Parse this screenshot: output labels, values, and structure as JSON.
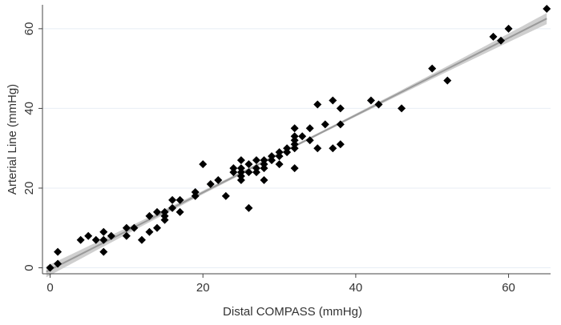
{
  "chart_data": {
    "type": "scatter",
    "title": "",
    "xlabel": "Distal COMPASS (mmHg)",
    "ylabel": "Arterial Line (mmHg)",
    "xlim": [
      -1,
      65.5
    ],
    "ylim": [
      -1.5,
      66
    ],
    "xticks": [
      0,
      20,
      40,
      60
    ],
    "yticks": [
      0,
      20,
      40,
      60
    ],
    "grid": "horizontal",
    "marker": "diamond",
    "colors": {
      "points": "#000000",
      "fit_line": "#9a9a9a",
      "ci_band": "#cfcfcf",
      "grid": "#e8eef4",
      "axis": "#444444"
    },
    "fit": {
      "intercept": -0.5,
      "slope": 0.97,
      "ci_halfwidth_min": 0.3,
      "ci_halfwidth_max": 1.4
    },
    "points": [
      [
        0,
        0
      ],
      [
        1,
        1
      ],
      [
        1,
        4
      ],
      [
        4,
        7
      ],
      [
        5,
        8
      ],
      [
        6,
        7
      ],
      [
        7,
        4
      ],
      [
        7,
        7
      ],
      [
        7,
        9
      ],
      [
        8,
        8
      ],
      [
        10,
        8
      ],
      [
        10,
        10
      ],
      [
        11,
        10
      ],
      [
        12,
        7
      ],
      [
        13,
        9
      ],
      [
        13,
        13
      ],
      [
        14,
        10
      ],
      [
        14,
        14
      ],
      [
        15,
        12
      ],
      [
        15,
        13
      ],
      [
        15,
        14
      ],
      [
        16,
        15
      ],
      [
        16,
        17
      ],
      [
        17,
        14
      ],
      [
        17,
        17
      ],
      [
        19,
        18
      ],
      [
        19,
        19
      ],
      [
        20,
        26
      ],
      [
        21,
        21
      ],
      [
        22,
        22
      ],
      [
        23,
        18
      ],
      [
        24,
        24
      ],
      [
        24,
        25
      ],
      [
        25,
        22
      ],
      [
        25,
        23
      ],
      [
        25,
        24
      ],
      [
        25,
        25
      ],
      [
        25,
        27
      ],
      [
        26,
        15
      ],
      [
        26,
        24
      ],
      [
        26,
        26
      ],
      [
        27,
        24
      ],
      [
        27,
        25
      ],
      [
        27,
        27
      ],
      [
        28,
        22
      ],
      [
        28,
        25
      ],
      [
        28,
        26
      ],
      [
        28,
        27
      ],
      [
        29,
        27
      ],
      [
        29,
        28
      ],
      [
        30,
        26
      ],
      [
        30,
        28
      ],
      [
        30,
        29
      ],
      [
        31,
        29
      ],
      [
        31,
        30
      ],
      [
        32,
        25
      ],
      [
        32,
        30
      ],
      [
        32,
        31
      ],
      [
        32,
        32
      ],
      [
        32,
        33
      ],
      [
        32,
        35
      ],
      [
        33,
        33
      ],
      [
        34,
        32
      ],
      [
        34,
        35
      ],
      [
        35,
        30
      ],
      [
        35,
        41
      ],
      [
        36,
        36
      ],
      [
        37,
        30
      ],
      [
        37,
        42
      ],
      [
        38,
        31
      ],
      [
        38,
        36
      ],
      [
        38,
        40
      ],
      [
        42,
        42
      ],
      [
        43,
        41
      ],
      [
        46,
        40
      ],
      [
        50,
        50
      ],
      [
        52,
        47
      ],
      [
        58,
        58
      ],
      [
        59,
        57
      ],
      [
        60,
        60
      ],
      [
        65,
        65
      ]
    ]
  }
}
